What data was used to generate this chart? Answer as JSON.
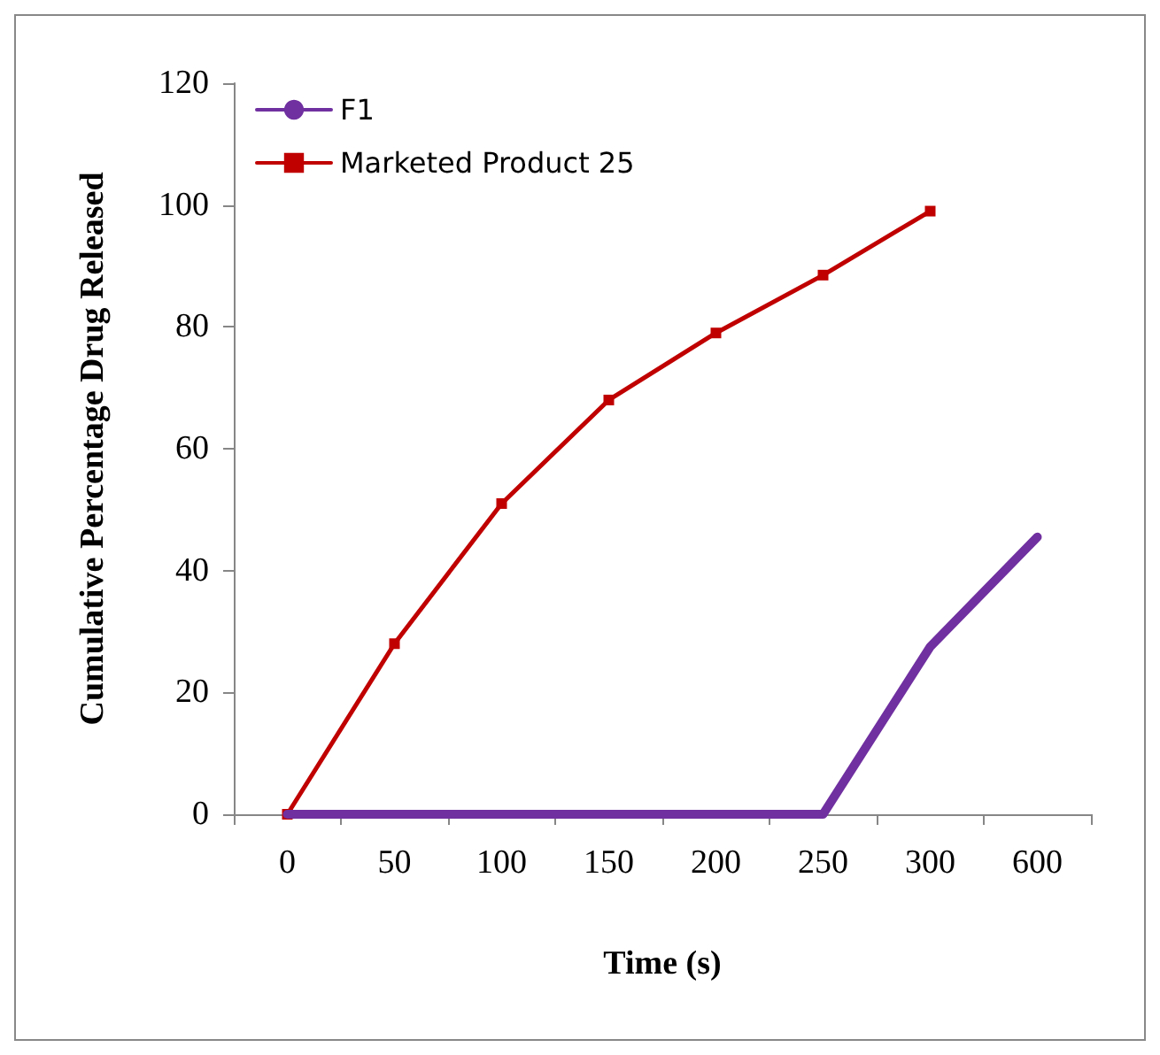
{
  "chart_data": {
    "type": "line",
    "xlabel": "Time (s)",
    "ylabel": "Cumulative Percentage Drug Released",
    "categories": [
      "0",
      "50",
      "100",
      "150",
      "200",
      "250",
      "300",
      "600"
    ],
    "series": [
      {
        "name": "F1",
        "color": "#7030a0",
        "marker": "none",
        "values": [
          0,
          0,
          0,
          0,
          0,
          0,
          27.5,
          45.5
        ]
      },
      {
        "name": "Marketed Product 25",
        "color": "#c00000",
        "marker": "square",
        "values": [
          0,
          28,
          51,
          68,
          79,
          88.5,
          99,
          null
        ]
      }
    ],
    "ylim": [
      0,
      120
    ],
    "yticks": [
      0,
      20,
      40,
      60,
      80,
      100,
      120
    ],
    "grid": false,
    "legend": "top left"
  }
}
